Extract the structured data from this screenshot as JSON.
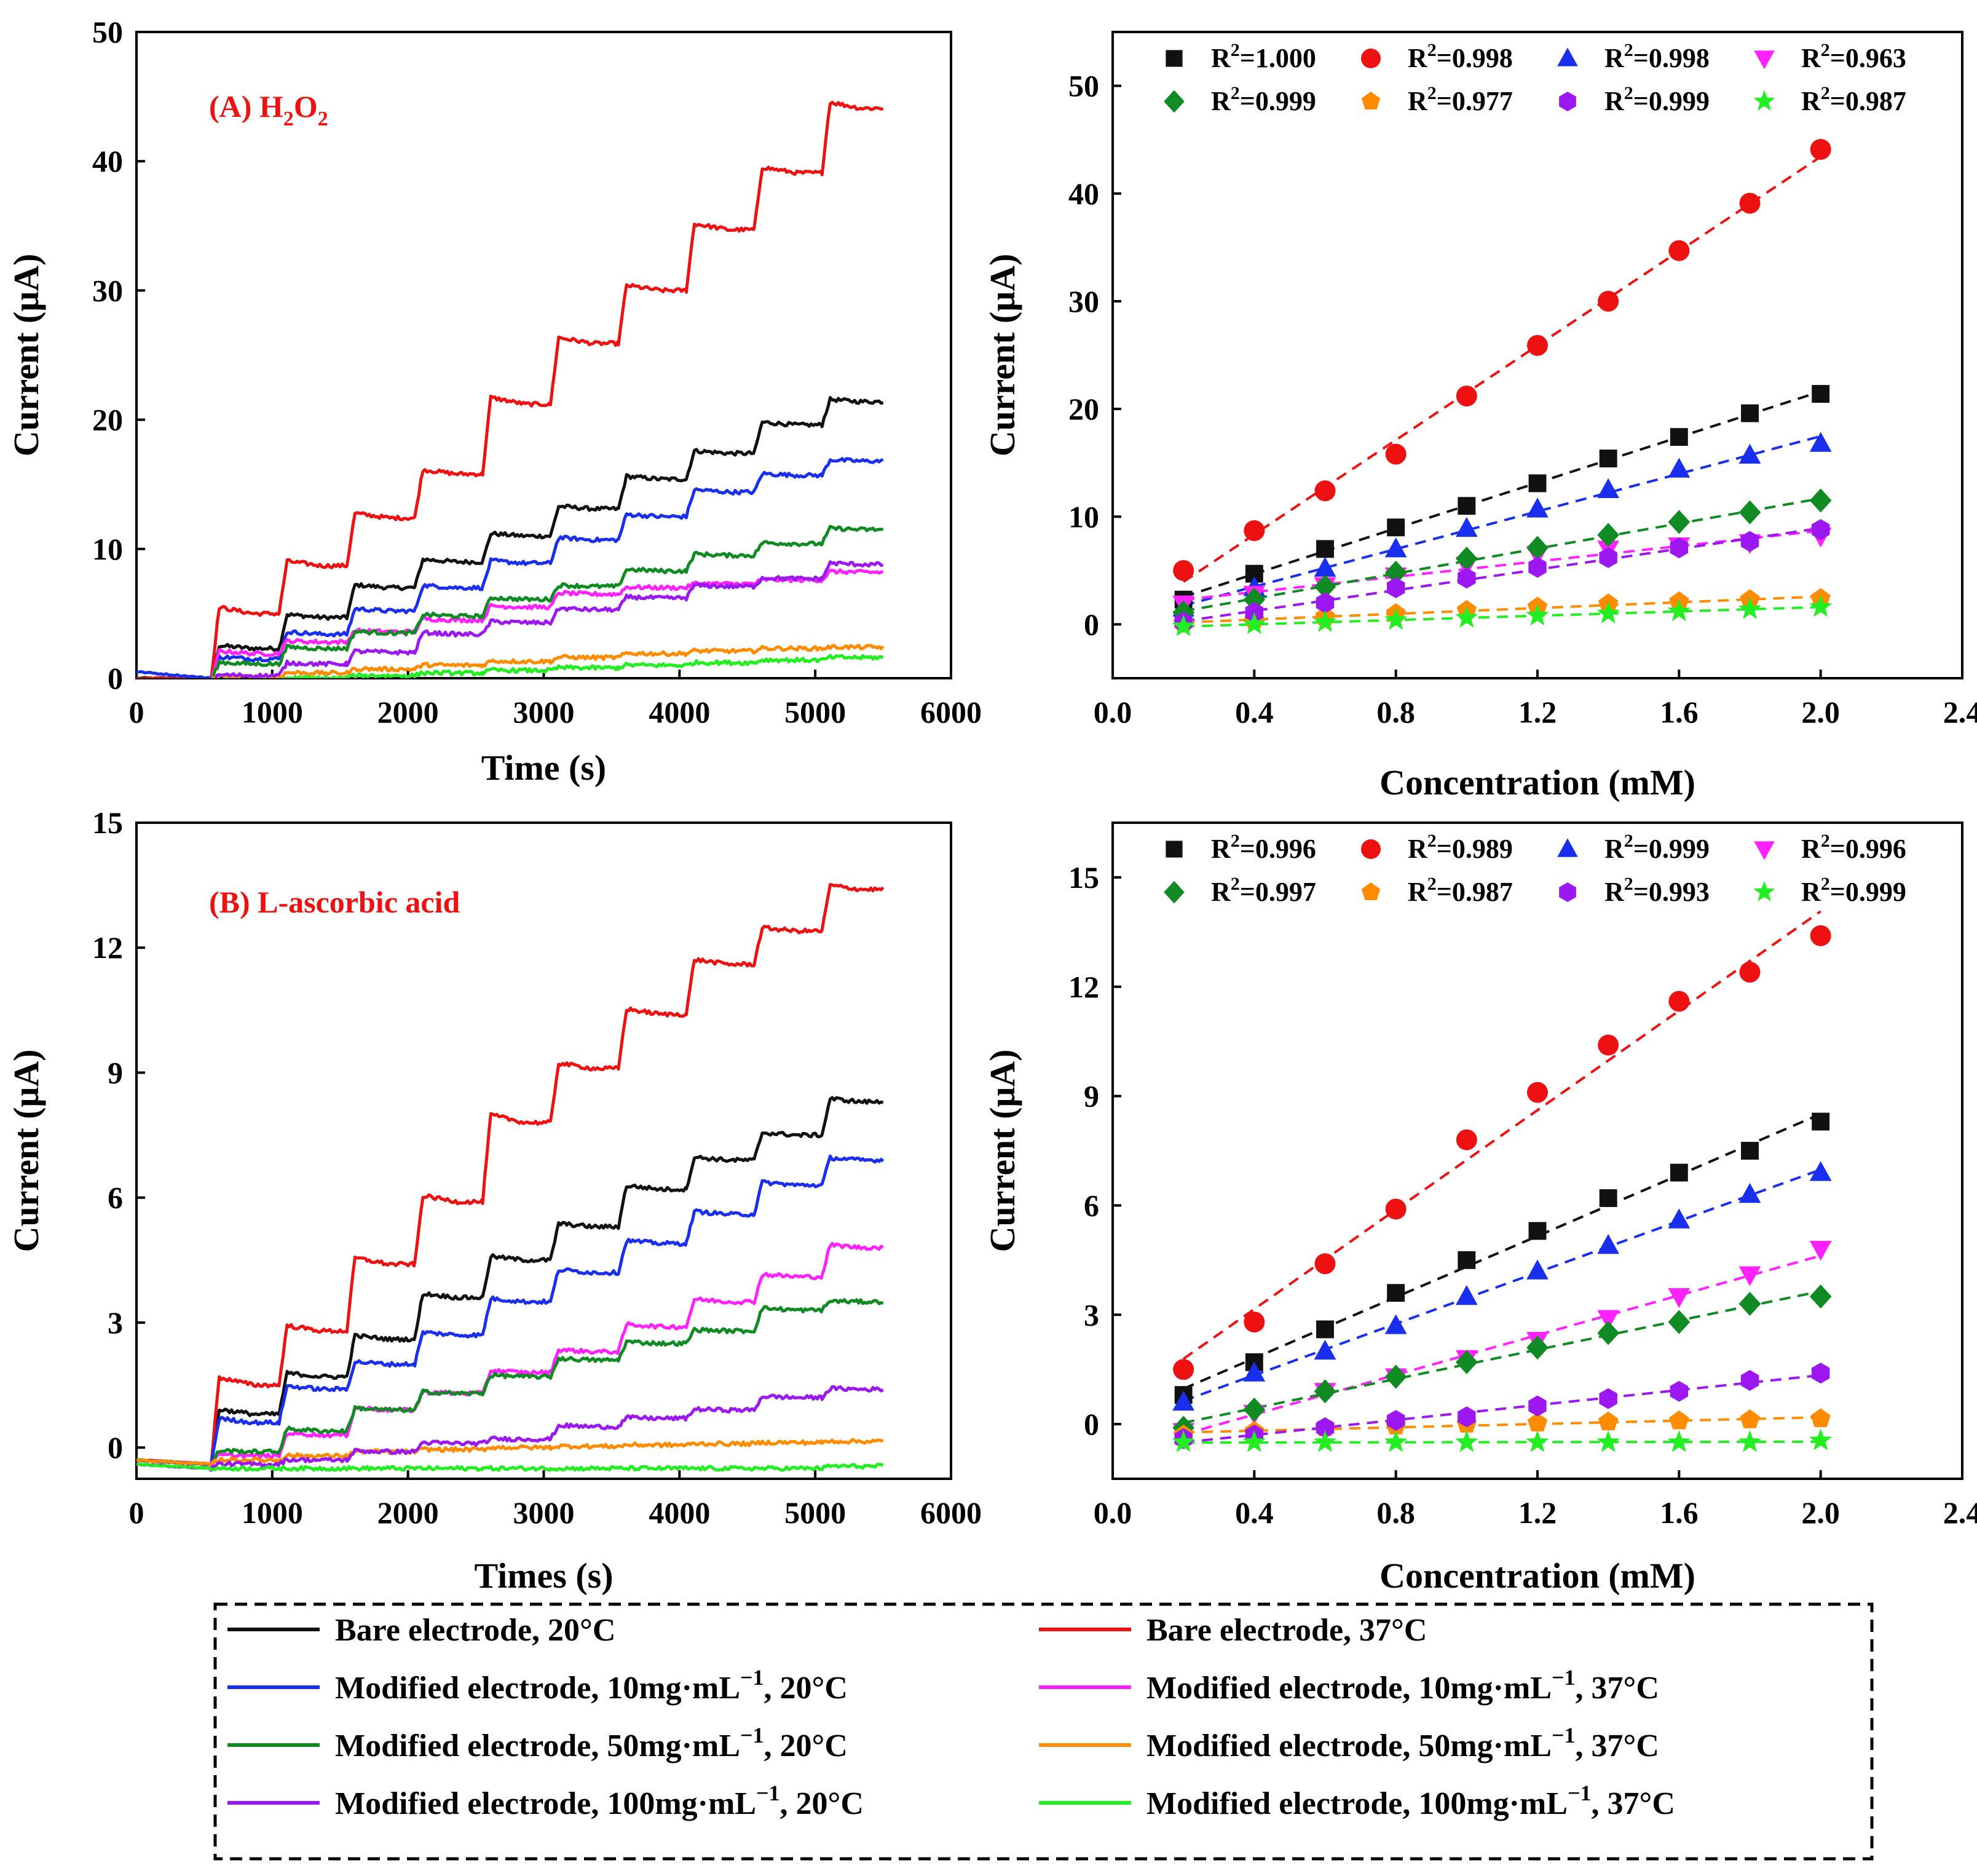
{
  "colors": {
    "black": "#111111",
    "red": "#ee1111",
    "blue": "#1a2fee",
    "green": "#108a22",
    "purple": "#9b19f0",
    "magenta": "#ff22ff",
    "orange": "#ff8c00",
    "lime": "#22ee22"
  },
  "chart_data": [
    {
      "id": "A-time",
      "type": "line",
      "label_main": "(A) H",
      "label_sub1": "2",
      "label_mid": "O",
      "label_sub2": "2",
      "xlabel": "Time (s)",
      "ylabel": "Current (μA)",
      "xlim": [
        0,
        6000
      ],
      "ylim": [
        0,
        50
      ],
      "xticks": [
        0,
        1000,
        2000,
        3000,
        4000,
        5000,
        6000
      ],
      "yticks": [
        0,
        10,
        20,
        30,
        40,
        50
      ],
      "injection_times": [
        550,
        1050,
        1550,
        2050,
        2550,
        3050,
        3550,
        4050,
        4550,
        5050
      ],
      "t_end": 5500,
      "series": [
        {
          "name": "Bare electrode, 20°C",
          "color": "black",
          "start": 0,
          "base_after": 0,
          "levels": [
            2.3,
            4.7,
            7.0,
            9.0,
            11.0,
            13.1,
            15.4,
            17.4,
            19.6,
            21.4
          ]
        },
        {
          "name": "Bare electrode, 37°C",
          "color": "red",
          "start": 0,
          "base_after": 0,
          "levels": [
            5.0,
            8.7,
            12.4,
            15.8,
            21.2,
            25.9,
            30.0,
            34.7,
            39.1,
            44.1
          ]
        },
        {
          "name": "Modified electrode, 10mg·mL⁻¹, 20°C",
          "color": "blue",
          "start": 0.5,
          "base_after": 0,
          "levels": [
            1.5,
            3.4,
            5.2,
            7.0,
            8.9,
            10.7,
            12.5,
            14.4,
            15.7,
            16.8
          ]
        },
        {
          "name": "Modified electrode, 10mg·mL⁻¹, 37°C",
          "color": "magenta",
          "start": -0.3,
          "base_after": -0.3,
          "levels": [
            1.9,
            2.8,
            3.6,
            4.5,
            5.5,
            6.5,
            7.0,
            7.3,
            7.6,
            8.2
          ]
        },
        {
          "name": "Modified electrode, 50mg·mL⁻¹, 20°C",
          "color": "green",
          "start": -0.2,
          "base_after": -0.2,
          "levels": [
            1.1,
            2.3,
            3.5,
            4.8,
            6.1,
            7.1,
            8.3,
            9.5,
            10.4,
            11.5
          ]
        },
        {
          "name": "Modified electrode, 50mg·mL⁻¹, 37°C",
          "color": "orange",
          "start": -0.2,
          "base_after": -0.2,
          "levels": [
            0.1,
            0.4,
            0.7,
            1.0,
            1.3,
            1.6,
            1.9,
            2.1,
            2.3,
            2.4
          ]
        },
        {
          "name": "Modified electrode, 100mg·mL⁻¹, 20°C",
          "color": "purple",
          "start": -0.3,
          "base_after": -0.3,
          "levels": [
            0.2,
            1.1,
            2.0,
            3.4,
            4.3,
            5.3,
            6.2,
            7.1,
            7.7,
            8.8
          ]
        },
        {
          "name": "Modified electrode, 100mg·mL⁻¹, 37°C",
          "color": "lime",
          "start": -0.4,
          "base_after": -0.4,
          "levels": [
            -0.2,
            0.0,
            0.2,
            0.4,
            0.6,
            0.8,
            1.0,
            1.2,
            1.4,
            1.6
          ]
        }
      ]
    },
    {
      "id": "A-conc",
      "type": "scatter",
      "xlabel": "Concentration (mM)",
      "ylabel": "Current (μA)",
      "xlim": [
        0,
        2.4
      ],
      "ylim": [
        -5,
        55
      ],
      "xticks": [
        0.0,
        0.4,
        0.8,
        1.2,
        1.6,
        2.0,
        2.4
      ],
      "xtick_labels": [
        "0.0",
        "0.4",
        "0.8",
        "1.2",
        "1.6",
        "2.0",
        "2.4"
      ],
      "yticks": [
        0,
        10,
        20,
        30,
        40,
        50
      ],
      "x": [
        0.2,
        0.4,
        0.6,
        0.8,
        1.0,
        1.2,
        1.4,
        1.6,
        1.8,
        2.0
      ],
      "series": [
        {
          "color": "black",
          "marker": "square",
          "r2": "=1.000",
          "y": [
            2.3,
            4.7,
            7.0,
            9.0,
            11.0,
            13.1,
            15.4,
            17.4,
            19.6,
            21.4
          ]
        },
        {
          "color": "red",
          "marker": "circle",
          "r2": "=0.998",
          "y": [
            5.0,
            8.7,
            12.4,
            15.8,
            21.2,
            25.9,
            30.0,
            34.7,
            39.1,
            44.1
          ]
        },
        {
          "color": "blue",
          "marker": "triangle-up",
          "r2": "=0.998",
          "y": [
            1.5,
            3.4,
            5.2,
            7.0,
            8.9,
            10.7,
            12.5,
            14.4,
            15.7,
            16.8
          ]
        },
        {
          "color": "magenta",
          "marker": "triangle-down",
          "r2": "=0.963",
          "y": [
            1.9,
            2.8,
            3.6,
            4.5,
            5.5,
            6.5,
            7.0,
            7.3,
            7.6,
            8.2
          ]
        },
        {
          "color": "green",
          "marker": "diamond",
          "r2": "=0.999",
          "y": [
            1.1,
            2.3,
            3.5,
            4.8,
            6.1,
            7.1,
            8.3,
            9.5,
            10.4,
            11.5
          ]
        },
        {
          "color": "orange",
          "marker": "pentagon",
          "r2": "=0.977",
          "y": [
            0.1,
            0.4,
            0.7,
            1.0,
            1.3,
            1.6,
            1.9,
            2.1,
            2.3,
            2.4
          ]
        },
        {
          "color": "purple",
          "marker": "hexagon",
          "r2": "=0.999",
          "y": [
            0.2,
            1.1,
            2.0,
            3.4,
            4.3,
            5.3,
            6.2,
            7.1,
            7.7,
            8.8
          ]
        },
        {
          "color": "lime",
          "marker": "star",
          "r2": "=0.987",
          "y": [
            -0.2,
            0.0,
            0.2,
            0.4,
            0.6,
            0.8,
            1.0,
            1.2,
            1.4,
            1.6
          ]
        }
      ]
    },
    {
      "id": "B-time",
      "type": "line",
      "label_main": "(B) L-ascorbic acid",
      "xlabel": "Times (s)",
      "ylabel": "Current (μA)",
      "xlim": [
        0,
        6000
      ],
      "ylim": [
        -0.75,
        15
      ],
      "xticks": [
        0,
        1000,
        2000,
        3000,
        4000,
        5000,
        6000
      ],
      "yticks": [
        0,
        3,
        6,
        9,
        12,
        15
      ],
      "injection_times": [
        550,
        1050,
        1550,
        2050,
        2550,
        3050,
        3550,
        4050,
        4550,
        5050
      ],
      "t_end": 5500,
      "series": [
        {
          "name": "Bare electrode, 20°C",
          "color": "black",
          "start": -0.3,
          "base_after": -0.4,
          "levels": [
            0.8,
            1.7,
            2.6,
            3.6,
            4.5,
            5.3,
            6.2,
            6.9,
            7.5,
            8.3
          ]
        },
        {
          "name": "Bare electrode, 37°C",
          "color": "red",
          "start": -0.3,
          "base_after": -0.4,
          "levels": [
            1.5,
            2.8,
            4.4,
            5.9,
            7.8,
            9.1,
            10.4,
            11.6,
            12.4,
            13.4
          ]
        },
        {
          "name": "Modified electrode, 10mg·mL⁻¹, 20°C",
          "color": "blue",
          "start": -0.3,
          "base_after": -0.4,
          "levels": [
            0.6,
            1.4,
            2.0,
            2.7,
            3.5,
            4.2,
            4.9,
            5.6,
            6.3,
            6.9
          ]
        },
        {
          "name": "Modified electrode, 10mg·mL⁻¹, 37°C",
          "color": "magenta",
          "start": -0.3,
          "base_after": -0.4,
          "levels": [
            -0.2,
            0.3,
            0.9,
            1.3,
            1.8,
            2.3,
            2.9,
            3.5,
            4.1,
            4.8
          ]
        },
        {
          "name": "Modified electrode, 50mg·mL⁻¹, 20°C",
          "color": "green",
          "start": -0.3,
          "base_after": -0.4,
          "levels": [
            -0.1,
            0.4,
            0.9,
            1.3,
            1.7,
            2.1,
            2.5,
            2.8,
            3.3,
            3.5
          ]
        },
        {
          "name": "Modified electrode, 50mg·mL⁻¹, 37°C",
          "color": "orange",
          "start": -0.3,
          "base_after": -0.4,
          "levels": [
            -0.3,
            -0.2,
            -0.1,
            -0.05,
            0.0,
            0.03,
            0.06,
            0.09,
            0.12,
            0.15
          ]
        },
        {
          "name": "Modified electrode, 100mg·mL⁻¹, 20°C",
          "color": "purple",
          "start": -0.4,
          "base_after": -0.5,
          "levels": [
            -0.4,
            -0.3,
            -0.1,
            0.1,
            0.2,
            0.5,
            0.7,
            0.9,
            1.2,
            1.4
          ]
        },
        {
          "name": "Modified electrode, 100mg·mL⁻¹, 37°C",
          "color": "lime",
          "start": -0.4,
          "base_after": -0.5,
          "levels": [
            -0.5,
            -0.5,
            -0.5,
            -0.5,
            -0.5,
            -0.5,
            -0.5,
            -0.5,
            -0.5,
            -0.45
          ]
        }
      ]
    },
    {
      "id": "B-conc",
      "type": "scatter",
      "xlabel": "Concentration (mM)",
      "ylabel": "Current (μA)",
      "xlim": [
        0,
        2.4
      ],
      "ylim": [
        -1.5,
        16.5
      ],
      "xticks": [
        0.0,
        0.4,
        0.8,
        1.2,
        1.6,
        2.0,
        2.4
      ],
      "xtick_labels": [
        "0.0",
        "0.4",
        "0.8",
        "1.2",
        "1.6",
        "2.0",
        "2.4"
      ],
      "yticks": [
        0,
        3,
        6,
        9,
        12,
        15
      ],
      "x": [
        0.2,
        0.4,
        0.6,
        0.8,
        1.0,
        1.2,
        1.4,
        1.6,
        1.8,
        2.0
      ],
      "series": [
        {
          "color": "black",
          "marker": "square",
          "r2": "=0.996",
          "y": [
            0.8,
            1.7,
            2.6,
            3.6,
            4.5,
            5.3,
            6.2,
            6.9,
            7.5,
            8.3
          ]
        },
        {
          "color": "red",
          "marker": "circle",
          "r2": "=0.989",
          "y": [
            1.5,
            2.8,
            4.4,
            5.9,
            7.8,
            9.1,
            10.4,
            11.6,
            12.4,
            13.4
          ]
        },
        {
          "color": "blue",
          "marker": "triangle-up",
          "r2": "=0.999",
          "y": [
            0.6,
            1.4,
            2.0,
            2.7,
            3.5,
            4.2,
            4.9,
            5.6,
            6.3,
            6.9
          ]
        },
        {
          "color": "magenta",
          "marker": "triangle-down",
          "r2": "=0.996",
          "y": [
            -0.2,
            0.3,
            0.9,
            1.3,
            1.8,
            2.3,
            2.9,
            3.5,
            4.1,
            4.8
          ]
        },
        {
          "color": "green",
          "marker": "diamond",
          "r2": "=0.997",
          "y": [
            -0.1,
            0.4,
            0.9,
            1.3,
            1.7,
            2.1,
            2.5,
            2.8,
            3.3,
            3.5
          ]
        },
        {
          "color": "orange",
          "marker": "pentagon",
          "r2": "=0.987",
          "y": [
            -0.3,
            -0.2,
            -0.1,
            -0.05,
            0.0,
            0.03,
            0.06,
            0.09,
            0.12,
            0.15
          ]
        },
        {
          "color": "purple",
          "marker": "hexagon",
          "r2": "=0.993",
          "y": [
            -0.4,
            -0.3,
            -0.1,
            0.1,
            0.2,
            0.5,
            0.7,
            0.9,
            1.2,
            1.4
          ]
        },
        {
          "color": "lime",
          "marker": "star",
          "r2": "=0.999",
          "y": [
            -0.5,
            -0.5,
            -0.5,
            -0.5,
            -0.5,
            -0.5,
            -0.5,
            -0.5,
            -0.5,
            -0.45
          ]
        }
      ]
    }
  ],
  "legend": {
    "entries": [
      {
        "label": "Bare electrode, 20°C",
        "color": "black"
      },
      {
        "label": "Bare electrode, 37°C",
        "color": "red"
      },
      {
        "label": "Modified electrode, 10mg·mL",
        "sup": "−1",
        "tail": ", 20°C",
        "color": "blue"
      },
      {
        "label": "Modified electrode, 10mg·mL",
        "sup": "−1",
        "tail": ", 37°C",
        "color": "magenta"
      },
      {
        "label": "Modified electrode, 50mg·mL",
        "sup": "−1",
        "tail": ", 20°C",
        "color": "green"
      },
      {
        "label": "Modified electrode, 50mg·mL",
        "sup": "−1",
        "tail": ", 37°C",
        "color": "orange"
      },
      {
        "label": "Modified electrode, 100mg·mL",
        "sup": "−1",
        "tail": ", 20°C",
        "color": "purple"
      },
      {
        "label": "Modified electrode, 100mg·mL",
        "sup": "−1",
        "tail": ",  37°C",
        "color": "lime"
      }
    ]
  },
  "r2_prefix": "R"
}
